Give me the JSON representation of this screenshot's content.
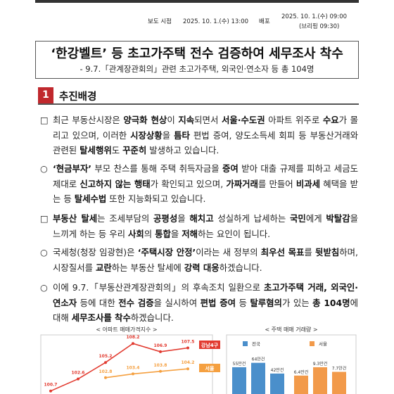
{
  "header": {
    "release_label": "보도 시점",
    "release_time": "2025. 10. 1.(수) 13:00",
    "distribution_label": "배포",
    "distribution_time": "2025. 10. 1.(수) 09:00",
    "briefing": "(브리핑 09:30)"
  },
  "title": "‘한강벨트’ 등 초고가주택 전수 검증하여 세무조사 착수",
  "subtitle": "- 9.7.「관계장관회의」관련 초고가주택, 외국인·연소자 등 총 104명",
  "section": {
    "number": "1",
    "title": "추진배경"
  },
  "paragraphs": [
    {
      "bullet": "□",
      "runs": [
        {
          "text": "최근 부동산시장은 "
        },
        {
          "text": "양극화 현상",
          "style": "bold"
        },
        {
          "text": "이 "
        },
        {
          "text": "지속",
          "style": "bold"
        },
        {
          "text": "되면서 "
        },
        {
          "text": "서울·수도권",
          "style": "bold"
        },
        {
          "text": " 아파트 위주로 "
        },
        {
          "text": "수요",
          "style": "bold"
        },
        {
          "text": "가 몰리고 있으며, 이러한 "
        },
        {
          "text": "시장상황",
          "style": "bold"
        },
        {
          "text": "을 "
        },
        {
          "text": "틈타",
          "style": "bold"
        },
        {
          "text": " 편법 증여, 양도소득세 회피 등 부동산거래와 관련된 "
        },
        {
          "text": "탈세행위",
          "style": "bold"
        },
        {
          "text": "도 "
        },
        {
          "text": "꾸준히",
          "style": "bold"
        },
        {
          "text": " 발생하고 있습니다."
        }
      ]
    },
    {
      "bullet": "○",
      "runs": [
        {
          "text": "‘현금부자’",
          "style": "bold"
        },
        {
          "text": " 부모 찬스를 통해 주택 취득자금을 "
        },
        {
          "text": "증여",
          "style": "bold"
        },
        {
          "text": " 받아 대출 규제를 피하고 세금도 제대로 "
        },
        {
          "text": "신고하지 않는 행태",
          "style": "bold"
        },
        {
          "text": "가 확인되고 있으며, "
        },
        {
          "text": "가짜거래",
          "style": "bold"
        },
        {
          "text": "를 만들어 "
        },
        {
          "text": "비과세",
          "style": "bold"
        },
        {
          "text": " 혜택을 받는 등 "
        },
        {
          "text": "탈세수법",
          "style": "bold"
        },
        {
          "text": " 또한 지능화되고 있습니다."
        }
      ]
    },
    {
      "bullet": "□",
      "runs": [
        {
          "text": "부동산 탈세",
          "style": "bold"
        },
        {
          "text": "는 조세부담의 "
        },
        {
          "text": "공평성",
          "style": "bold"
        },
        {
          "text": "을 "
        },
        {
          "text": "해치고",
          "style": "bold"
        },
        {
          "text": " 성실하게 납세하는 "
        },
        {
          "text": "국민",
          "style": "bold"
        },
        {
          "text": "에게 "
        },
        {
          "text": "박탈감",
          "style": "bold"
        },
        {
          "text": "을 느끼게 하는 등 우리 "
        },
        {
          "text": "사회",
          "style": "bold"
        },
        {
          "text": "의 "
        },
        {
          "text": "통합",
          "style": "bold"
        },
        {
          "text": "을 "
        },
        {
          "text": "저해",
          "style": "bold"
        },
        {
          "text": "하는 요인이 됩니다."
        }
      ]
    },
    {
      "bullet": "○",
      "runs": [
        {
          "text": "국세청(청장 임광현)은 "
        },
        {
          "text": "‘주택시장 안정’",
          "style": "bold"
        },
        {
          "text": "이라는 새 정부의 "
        },
        {
          "text": "최우선 목표",
          "style": "bold"
        },
        {
          "text": "를 "
        },
        {
          "text": "뒷받침",
          "style": "bold"
        },
        {
          "text": "하며, 시장질서를 "
        },
        {
          "text": "교란",
          "style": "bold"
        },
        {
          "text": "하는 부동산 탈세에 "
        },
        {
          "text": "강력 대응",
          "style": "bold"
        },
        {
          "text": "하겠습니다."
        }
      ]
    },
    {
      "bullet": "○",
      "runs": [
        {
          "text": "이에 9.7.「부동산관계장관회의」의 후속조치 일환으로 "
        },
        {
          "text": "초고가주택 거래, 외국인·연소자",
          "style": "bold"
        },
        {
          "text": " 등에 대한 "
        },
        {
          "text": "전수 검증",
          "style": "bold"
        },
        {
          "text": "을 실시하여 "
        },
        {
          "text": "편법 증여",
          "style": "bold"
        },
        {
          "text": " 등 "
        },
        {
          "text": "탈루혐의",
          "style": "bold"
        },
        {
          "text": "가 있는 "
        },
        {
          "text": "총 104명",
          "style": "bold"
        },
        {
          "text": "에 대해 "
        },
        {
          "text": "세무조사를 착수",
          "style": "bold"
        },
        {
          "text": "하겠습니다."
        }
      ]
    }
  ],
  "figures": [
    {
      "type": "line",
      "title": "< 아파트 매매가격지수 >",
      "ylim": [
        100,
        110
      ],
      "series": [
        {
          "name": "강남4구",
          "color": "#e23b30",
          "values": [
            100.7,
            102.6,
            105.2,
            108.2,
            106.9,
            107.5
          ]
        },
        {
          "name": "서울",
          "color": "#f5a040",
          "values": [
            null,
            null,
            102.8,
            103.4,
            103.8,
            104.2
          ]
        }
      ]
    },
    {
      "type": "bar",
      "title": "< 주택 매매 거래량 >",
      "ylim": [
        0,
        130
      ],
      "y2lim": [
        0,
        22
      ],
      "series": [
        {
          "name": "전국",
          "color": "#4a8fcb",
          "values": [
            55,
            64,
            42
          ],
          "value_labels": [
            "55만건",
            "64만건",
            "42만건"
          ]
        },
        {
          "name": "서울",
          "color": "#f29a4a",
          "axis": "y2",
          "values": [
            6.4,
            9.3,
            7.7
          ],
          "value_labels": [
            "6.4만건",
            "9.3만건",
            "7.7만건"
          ]
        }
      ]
    }
  ]
}
